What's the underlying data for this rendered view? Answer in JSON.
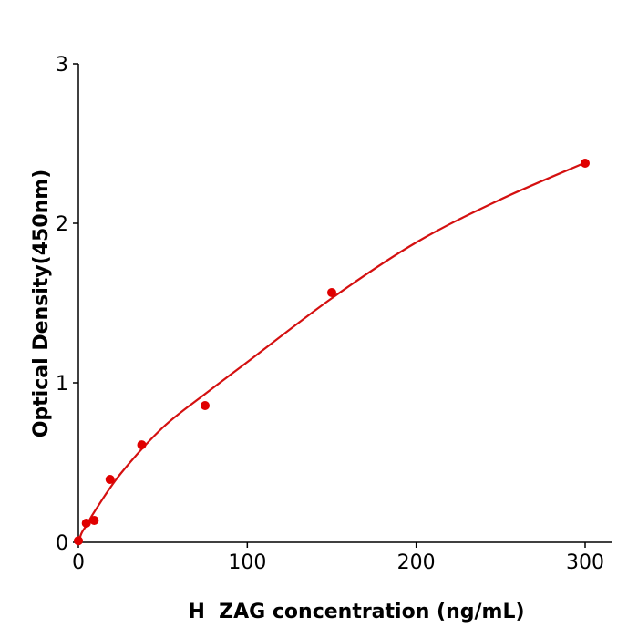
{
  "chart_data": {
    "type": "scatter",
    "title": "",
    "xlabel": "H  ZAG concentration (ng/mL)",
    "ylabel": "Optical Density(450nm)",
    "xlim": [
      0,
      315
    ],
    "ylim": [
      0,
      3
    ],
    "xticks": [
      0,
      100,
      200,
      300
    ],
    "yticks": [
      0,
      1,
      2,
      3
    ],
    "grid": false,
    "color": "#e00000",
    "curve_color": "#d41010",
    "points": {
      "x": [
        0,
        4.69,
        9.38,
        18.75,
        37.5,
        75,
        150,
        300
      ],
      "y": [
        0.01,
        0.12,
        0.137,
        0.394,
        0.611,
        0.857,
        1.566,
        2.377
      ]
    },
    "fit_curve": {
      "x": [
        0,
        2,
        5,
        10,
        25,
        50,
        75,
        100,
        150,
        200,
        250,
        300
      ],
      "y": [
        0,
        0.06,
        0.11,
        0.2,
        0.43,
        0.72,
        0.93,
        1.13,
        1.53,
        1.88,
        2.15,
        2.38
      ]
    }
  }
}
